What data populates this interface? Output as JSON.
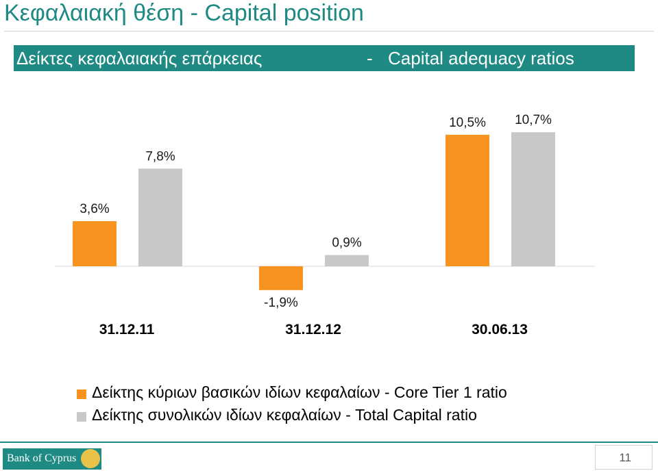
{
  "page": {
    "title": "Κεφαλαιακή θέση - Capital position",
    "section_heading_gr": "Δείκτες κεφαλαιακής επάρκειας",
    "section_heading_sep": "-",
    "section_heading_en": "Capital adequacy ratios",
    "page_number": "11",
    "logo_text": "Bank of Cyprus"
  },
  "colors": {
    "accent": "#1f8a83",
    "core_tier1": "#f7931e",
    "total_capital": "#c8c8c8"
  },
  "chart_data": {
    "type": "bar",
    "title": "Δείκτες κεφαλαιακής επάρκειας - Capital adequacy ratios",
    "categories": [
      "31.12.11",
      "31.12.12",
      "30.06.13"
    ],
    "series": [
      {
        "name": "Δείκτης κύριων  βασικών ιδίων κεφαλαίων - Core Tier 1 ratio",
        "values": [
          3.6,
          -1.9,
          10.5
        ],
        "labels": [
          "3,6%",
          "-1,9%",
          "10,5%"
        ],
        "color": "#f7931e"
      },
      {
        "name": "Δείκτης συνολικών ιδίων κεφαλαίων - Total Capital ratio",
        "values": [
          7.8,
          0.9,
          10.7
        ],
        "labels": [
          "7,8%",
          "0,9%",
          "10,7%"
        ],
        "color": "#c8c8c8"
      }
    ],
    "ylim": [
      -2,
      11
    ],
    "xlabel": "",
    "ylabel": "",
    "grid": false,
    "legend": "bottom"
  }
}
